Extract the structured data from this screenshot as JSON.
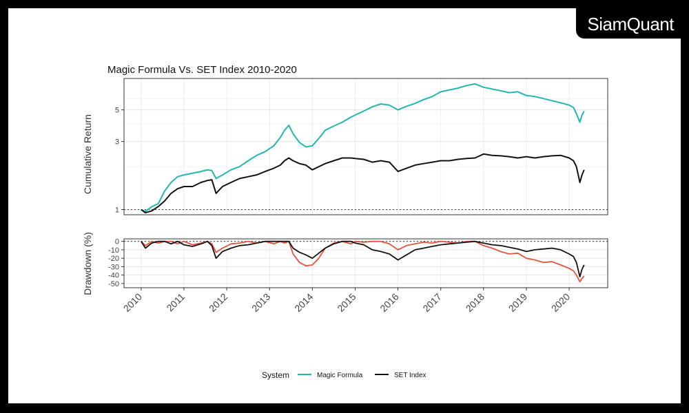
{
  "brand": {
    "logo": "SiamQuant"
  },
  "colors": {
    "magic": "#20B8AE",
    "set": "#111111",
    "drawdown_magic": "#E8523B"
  },
  "chart_data": [
    {
      "type": "line",
      "title": "Magic Formula Vs. SET Index 2010-2020",
      "ylabel": "Cumulative Return",
      "yscale": "log",
      "yticks": [
        1,
        3,
        5
      ],
      "ylim": [
        0.92,
        8.3
      ],
      "xlim": [
        2009.6,
        2020.9
      ],
      "grid": true,
      "series": [
        {
          "name": "Magic Formula",
          "x": [
            2010.0,
            2010.1,
            2010.25,
            2010.4,
            2010.55,
            2010.7,
            2010.85,
            2011.0,
            2011.2,
            2011.4,
            2011.55,
            2011.65,
            2011.75,
            2011.9,
            2012.1,
            2012.3,
            2012.5,
            2012.7,
            2012.9,
            2013.1,
            2013.25,
            2013.35,
            2013.45,
            2013.55,
            2013.7,
            2013.85,
            2014.0,
            2014.15,
            2014.3,
            2014.5,
            2014.7,
            2014.9,
            2015.0,
            2015.2,
            2015.4,
            2015.6,
            2015.8,
            2016.0,
            2016.2,
            2016.4,
            2016.6,
            2016.8,
            2017.0,
            2017.2,
            2017.4,
            2017.6,
            2017.8,
            2018.0,
            2018.2,
            2018.4,
            2018.6,
            2018.8,
            2019.0,
            2019.2,
            2019.4,
            2019.6,
            2019.8,
            2020.0,
            2020.1,
            2020.17,
            2020.25,
            2020.3,
            2020.35
          ],
          "y": [
            1.0,
            0.97,
            1.05,
            1.1,
            1.35,
            1.55,
            1.7,
            1.75,
            1.8,
            1.85,
            1.9,
            1.88,
            1.65,
            1.75,
            1.9,
            2.0,
            2.2,
            2.4,
            2.55,
            2.8,
            3.2,
            3.6,
            3.9,
            3.4,
            2.95,
            2.75,
            2.8,
            3.15,
            3.6,
            3.85,
            4.1,
            4.45,
            4.6,
            4.9,
            5.25,
            5.5,
            5.4,
            5.0,
            5.3,
            5.55,
            5.9,
            6.2,
            6.7,
            6.9,
            7.1,
            7.4,
            7.6,
            7.2,
            7.0,
            6.8,
            6.6,
            6.7,
            6.3,
            6.2,
            6.0,
            5.8,
            5.6,
            5.4,
            5.2,
            4.7,
            4.1,
            4.6,
            4.9
          ]
        },
        {
          "name": "SET Index",
          "x": [
            2010.0,
            2010.1,
            2010.25,
            2010.4,
            2010.55,
            2010.7,
            2010.85,
            2011.0,
            2011.2,
            2011.4,
            2011.55,
            2011.65,
            2011.75,
            2011.9,
            2012.1,
            2012.3,
            2012.5,
            2012.7,
            2012.9,
            2013.1,
            2013.25,
            2013.35,
            2013.45,
            2013.55,
            2013.7,
            2013.85,
            2014.0,
            2014.15,
            2014.3,
            2014.5,
            2014.7,
            2014.9,
            2015.0,
            2015.2,
            2015.4,
            2015.6,
            2015.8,
            2016.0,
            2016.2,
            2016.4,
            2016.6,
            2016.8,
            2017.0,
            2017.2,
            2017.4,
            2017.6,
            2017.8,
            2018.0,
            2018.2,
            2018.4,
            2018.6,
            2018.8,
            2019.0,
            2019.2,
            2019.4,
            2019.6,
            2019.8,
            2020.0,
            2020.1,
            2020.17,
            2020.25,
            2020.3,
            2020.35
          ],
          "y": [
            1.0,
            0.95,
            0.98,
            1.05,
            1.15,
            1.3,
            1.4,
            1.45,
            1.45,
            1.55,
            1.6,
            1.62,
            1.3,
            1.45,
            1.55,
            1.65,
            1.7,
            1.75,
            1.85,
            1.95,
            2.05,
            2.2,
            2.3,
            2.2,
            2.1,
            2.05,
            1.9,
            2.0,
            2.1,
            2.2,
            2.3,
            2.3,
            2.28,
            2.25,
            2.15,
            2.2,
            2.15,
            1.85,
            1.95,
            2.05,
            2.1,
            2.15,
            2.2,
            2.2,
            2.25,
            2.28,
            2.3,
            2.45,
            2.4,
            2.38,
            2.35,
            2.3,
            2.35,
            2.3,
            2.35,
            2.38,
            2.4,
            2.3,
            2.2,
            2.0,
            1.55,
            1.75,
            1.9
          ]
        }
      ]
    },
    {
      "type": "line",
      "ylabel": "Drawdown (%)",
      "yticks": [
        0,
        -10,
        -20,
        -30,
        -40,
        -50
      ],
      "ylim": [
        -55,
        3
      ],
      "xlim": [
        2009.6,
        2020.9
      ],
      "xticks": [
        "2010",
        "2011",
        "2012",
        "2013",
        "2014",
        "2015",
        "2016",
        "2017",
        "2018",
        "2019",
        "2020"
      ],
      "grid": true,
      "series": [
        {
          "name": "Magic Formula",
          "x": [
            2010.0,
            2010.1,
            2010.25,
            2010.4,
            2010.55,
            2010.7,
            2010.85,
            2011.0,
            2011.2,
            2011.4,
            2011.55,
            2011.65,
            2011.75,
            2011.9,
            2012.1,
            2012.3,
            2012.5,
            2012.7,
            2012.9,
            2013.1,
            2013.25,
            2013.35,
            2013.45,
            2013.55,
            2013.7,
            2013.85,
            2014.0,
            2014.15,
            2014.3,
            2014.5,
            2014.7,
            2014.9,
            2015.0,
            2015.2,
            2015.4,
            2015.6,
            2015.8,
            2016.0,
            2016.2,
            2016.4,
            2016.6,
            2016.8,
            2017.0,
            2017.2,
            2017.4,
            2017.6,
            2017.8,
            2018.0,
            2018.2,
            2018.4,
            2018.6,
            2018.8,
            2019.0,
            2019.2,
            2019.4,
            2019.6,
            2019.8,
            2020.0,
            2020.1,
            2020.17,
            2020.25,
            2020.3,
            2020.35
          ],
          "y": [
            0,
            -5,
            0,
            -2,
            0,
            0,
            -3,
            0,
            -4,
            -2,
            0,
            -3,
            -13,
            -8,
            -3,
            -2,
            0,
            -2,
            0,
            -3,
            0,
            -2,
            0,
            -15,
            -25,
            -29,
            -28,
            -20,
            -8,
            -2,
            0,
            -3,
            0,
            -1,
            0,
            0,
            -3,
            -10,
            -5,
            -3,
            -1,
            -2,
            0,
            -1,
            -2,
            0,
            0,
            -5,
            -8,
            -12,
            -15,
            -14,
            -20,
            -22,
            -25,
            -24,
            -28,
            -32,
            -35,
            -40,
            -48,
            -44,
            -41
          ]
        },
        {
          "name": "SET Index",
          "x": [
            2010.0,
            2010.1,
            2010.25,
            2010.4,
            2010.55,
            2010.7,
            2010.85,
            2011.0,
            2011.2,
            2011.4,
            2011.55,
            2011.65,
            2011.75,
            2011.9,
            2012.1,
            2012.3,
            2012.5,
            2012.7,
            2012.9,
            2013.1,
            2013.25,
            2013.35,
            2013.45,
            2013.55,
            2013.7,
            2013.85,
            2014.0,
            2014.15,
            2014.3,
            2014.5,
            2014.7,
            2014.9,
            2015.0,
            2015.2,
            2015.4,
            2015.6,
            2015.8,
            2016.0,
            2016.2,
            2016.4,
            2016.6,
            2016.8,
            2017.0,
            2017.2,
            2017.4,
            2017.6,
            2017.8,
            2018.0,
            2018.2,
            2018.4,
            2018.6,
            2018.8,
            2019.0,
            2019.2,
            2019.4,
            2019.6,
            2019.8,
            2020.0,
            2020.1,
            2020.17,
            2020.25,
            2020.3,
            2020.35
          ],
          "y": [
            0,
            -8,
            -2,
            0,
            0,
            -3,
            0,
            -4,
            -6,
            -3,
            0,
            -5,
            -20,
            -12,
            -8,
            -5,
            -4,
            -2,
            0,
            0,
            0,
            0,
            0,
            -8,
            -13,
            -16,
            -20,
            -14,
            -8,
            -3,
            0,
            0,
            -2,
            -4,
            -10,
            -12,
            -15,
            -22,
            -16,
            -10,
            -8,
            -6,
            -4,
            -3,
            -2,
            -1,
            0,
            -2,
            -4,
            -5,
            -7,
            -9,
            -12,
            -10,
            -9,
            -8,
            -10,
            -15,
            -18,
            -25,
            -42,
            -33,
            -28
          ]
        }
      ]
    }
  ],
  "legend": {
    "title": "System",
    "items": [
      "Magic Formula",
      "SET Index"
    ],
    "position": "bottom"
  }
}
